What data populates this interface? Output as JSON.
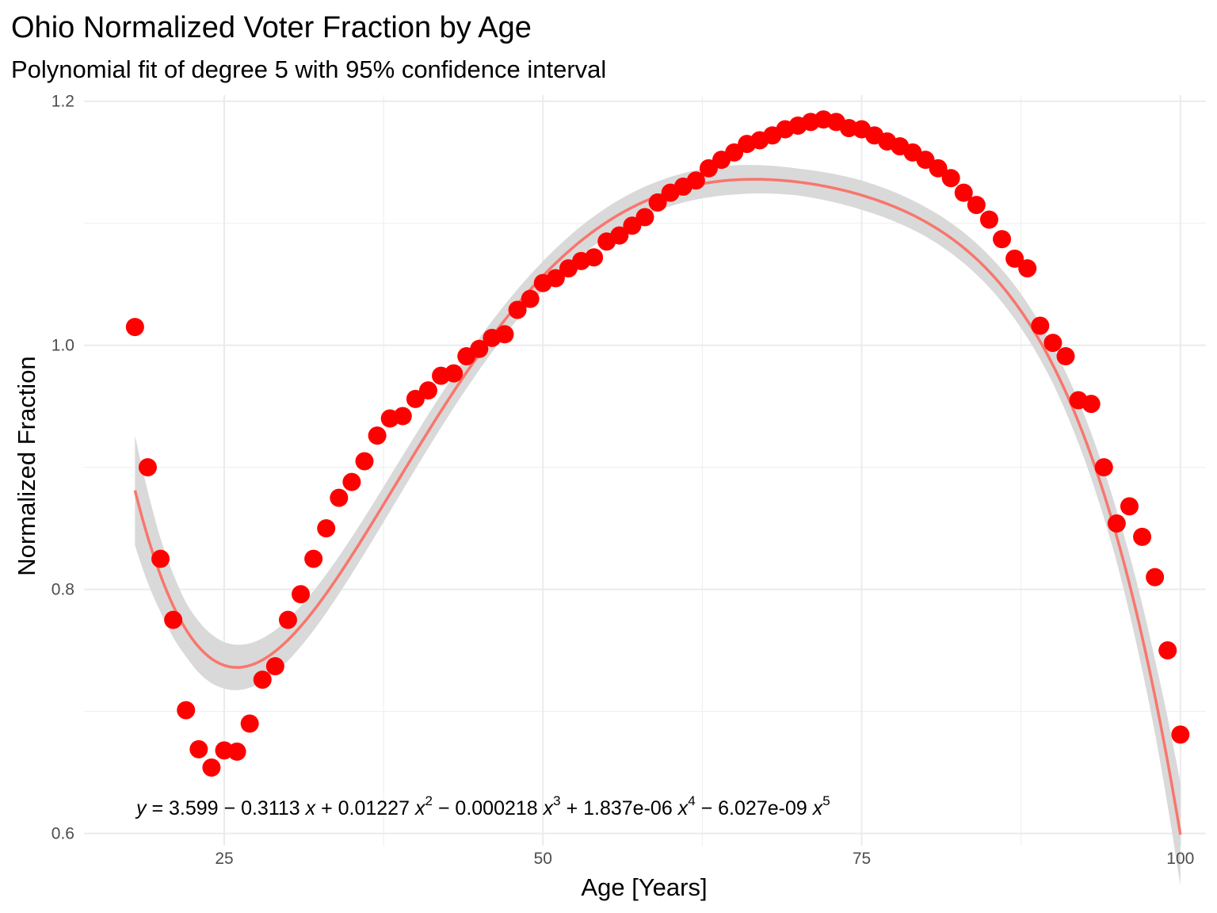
{
  "chart_data": {
    "type": "scatter",
    "title": "Ohio Normalized Voter Fraction by Age",
    "subtitle": "Polynomial fit of degree 5 with 95% confidence interval",
    "xlabel": "Age [Years]",
    "ylabel": "Normalized Fraction",
    "xlim": [
      14,
      102
    ],
    "ylim": [
      0.59,
      1.205
    ],
    "x_ticks": [
      25,
      50,
      75,
      100
    ],
    "y_ticks": [
      0.6,
      0.8,
      1.0,
      1.2
    ],
    "x_tick_labels": [
      "25",
      "50",
      "75",
      "100"
    ],
    "y_tick_labels": [
      "0.6",
      "0.8",
      "1.0",
      "1.2"
    ],
    "grid": true,
    "point_color": "#ff0000",
    "fit_color": "#f8766d",
    "ribbon_color": "#d9d9d9",
    "points": {
      "x": [
        18,
        19,
        20,
        21,
        22,
        23,
        24,
        25,
        26,
        27,
        28,
        29,
        30,
        31,
        32,
        33,
        34,
        35,
        36,
        37,
        38,
        39,
        40,
        41,
        42,
        43,
        44,
        45,
        46,
        47,
        48,
        49,
        50,
        51,
        52,
        53,
        54,
        55,
        56,
        57,
        58,
        59,
        60,
        61,
        62,
        63,
        64,
        65,
        66,
        67,
        68,
        69,
        70,
        71,
        72,
        73,
        74,
        75,
        76,
        77,
        78,
        79,
        80,
        81,
        82,
        83,
        84,
        85,
        86,
        87,
        88,
        89,
        90,
        91,
        92,
        93,
        94,
        95,
        96,
        97,
        98,
        99,
        100
      ],
      "y": [
        1.015,
        0.9,
        0.825,
        0.775,
        0.701,
        0.669,
        0.654,
        0.668,
        0.667,
        0.69,
        0.726,
        0.737,
        0.775,
        0.796,
        0.825,
        0.85,
        0.875,
        0.888,
        0.905,
        0.926,
        0.94,
        0.942,
        0.956,
        0.963,
        0.975,
        0.977,
        0.991,
        0.997,
        1.006,
        1.009,
        1.029,
        1.038,
        1.051,
        1.055,
        1.063,
        1.069,
        1.072,
        1.085,
        1.09,
        1.098,
        1.105,
        1.117,
        1.125,
        1.13,
        1.135,
        1.145,
        1.152,
        1.158,
        1.165,
        1.168,
        1.172,
        1.177,
        1.18,
        1.183,
        1.185,
        1.183,
        1.178,
        1.177,
        1.172,
        1.167,
        1.163,
        1.158,
        1.152,
        1.145,
        1.137,
        1.125,
        1.115,
        1.103,
        1.087,
        1.071,
        1.063,
        1.016,
        1.002,
        0.991,
        0.955,
        0.952,
        0.9,
        0.854,
        0.868,
        0.843,
        0.81,
        0.75,
        0.681
      ]
    },
    "fit": {
      "equation_lhs": "y",
      "equation_rhs": [
        {
          "sign": "=",
          "coef": "3.599",
          "power": ""
        },
        {
          "sign": "−",
          "coef": "0.3113",
          "power": "1"
        },
        {
          "sign": "+",
          "coef": "0.01227",
          "power": "2"
        },
        {
          "sign": "−",
          "coef": "0.000218",
          "power": "3"
        },
        {
          "sign": "+",
          "coef": "1.837e-06",
          "power": "4"
        },
        {
          "sign": "−",
          "coef": "6.027e-09",
          "power": "5"
        }
      ],
      "equation_var": "x",
      "coefficients": [
        3.599,
        -0.3113,
        0.01227,
        -0.000218,
        1.837e-06,
        -6.027e-09
      ],
      "x_range": [
        18,
        100
      ],
      "ci_halfwidth": {
        "ages": [
          18,
          20,
          22,
          25,
          30,
          35,
          40,
          45,
          50,
          55,
          60,
          65,
          70,
          75,
          80,
          85,
          90,
          95,
          98,
          100
        ],
        "values": [
          0.045,
          0.03,
          0.022,
          0.019,
          0.017,
          0.015,
          0.014,
          0.013,
          0.012,
          0.012,
          0.012,
          0.012,
          0.011,
          0.012,
          0.012,
          0.013,
          0.015,
          0.021,
          0.03,
          0.042
        ]
      }
    }
  }
}
